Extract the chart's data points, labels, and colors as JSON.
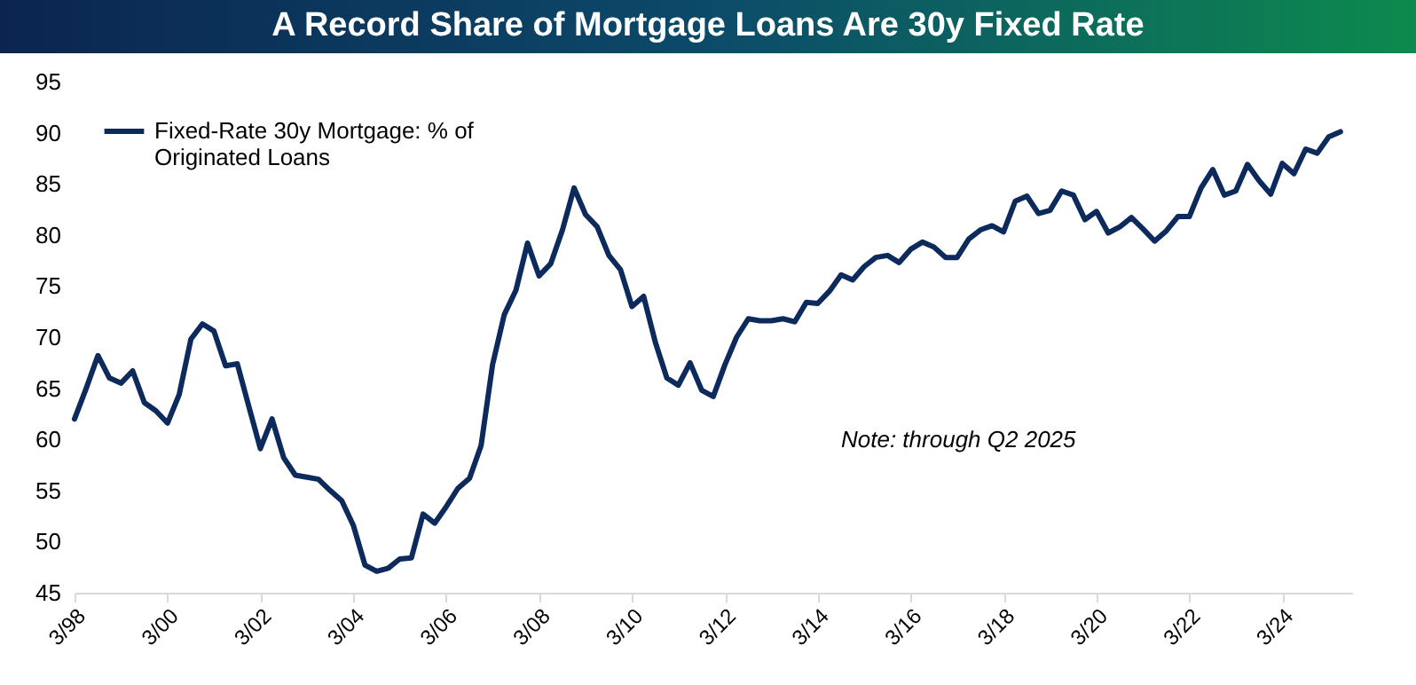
{
  "chart_data": {
    "type": "line",
    "title": "A Record Share of Mortgage Loans Are 30y Fixed Rate",
    "annotations": [
      "Note: through Q2 2025"
    ],
    "x": [
      "1998-03",
      "1998-06",
      "1998-09",
      "1998-12",
      "1999-03",
      "1999-06",
      "1999-09",
      "1999-12",
      "2000-03",
      "2000-06",
      "2000-09",
      "2000-12",
      "2001-03",
      "2001-06",
      "2001-09",
      "2001-12",
      "2002-03",
      "2002-06",
      "2002-09",
      "2002-12",
      "2003-03",
      "2003-06",
      "2003-09",
      "2003-12",
      "2004-03",
      "2004-06",
      "2004-09",
      "2004-12",
      "2005-03",
      "2005-06",
      "2005-09",
      "2005-12",
      "2006-03",
      "2006-06",
      "2006-09",
      "2006-12",
      "2007-03",
      "2007-06",
      "2007-09",
      "2007-12",
      "2008-03",
      "2008-06",
      "2008-09",
      "2008-12",
      "2009-03",
      "2009-06",
      "2009-09",
      "2009-12",
      "2010-03",
      "2010-06",
      "2010-09",
      "2010-12",
      "2011-03",
      "2011-06",
      "2011-09",
      "2011-12",
      "2012-03",
      "2012-06",
      "2012-09",
      "2012-12",
      "2013-03",
      "2013-06",
      "2013-09",
      "2013-12",
      "2014-03",
      "2014-06",
      "2014-09",
      "2014-12",
      "2015-03",
      "2015-06",
      "2015-09",
      "2015-12",
      "2016-03",
      "2016-06",
      "2016-09",
      "2016-12",
      "2017-03",
      "2017-06",
      "2017-09",
      "2017-12",
      "2018-03",
      "2018-06",
      "2018-09",
      "2018-12",
      "2019-03",
      "2019-06",
      "2019-09",
      "2019-12",
      "2020-03",
      "2020-06",
      "2020-09",
      "2020-12",
      "2021-03",
      "2021-06",
      "2021-09",
      "2021-12",
      "2022-03",
      "2022-06",
      "2022-09",
      "2022-12",
      "2023-03",
      "2023-06",
      "2023-09",
      "2023-12",
      "2024-03",
      "2024-06",
      "2024-09",
      "2024-12",
      "2025-03",
      "2025-06"
    ],
    "series": [
      {
        "name": "Fixed-Rate 30y Mortgage: % of Originated Loans",
        "color": "#0d2a5c",
        "values": [
          62,
          65,
          68.2,
          66,
          65.5,
          66.7,
          63.6,
          62.8,
          61.6,
          64.4,
          69.8,
          71.3,
          70.6,
          67.2,
          67.4,
          63.2,
          59.1,
          62,
          58.2,
          56.5,
          56.3,
          56.1,
          55,
          54,
          51.6,
          47.7,
          47.1,
          47.4,
          48.3,
          48.4,
          52.7,
          51.8,
          53.4,
          55.2,
          56.2,
          59.4,
          67.3,
          72.2,
          74.6,
          79.2,
          76,
          77.2,
          80.5,
          84.6,
          82,
          80.8,
          78,
          76.6,
          73,
          74,
          69.5,
          66,
          65.3,
          67.5,
          64.8,
          64.2,
          67.3,
          70,
          71.8,
          71.6,
          71.6,
          71.8,
          71.5,
          73.4,
          73.3,
          74.5,
          76.1,
          75.6,
          76.9,
          77.8,
          78,
          77.3,
          78.6,
          79.3,
          78.8,
          77.8,
          77.8,
          79.6,
          80.5,
          80.9,
          80.3,
          83.3,
          83.8,
          82.1,
          82.4,
          84.3,
          83.9,
          81.5,
          82.3,
          80.2,
          80.8,
          81.7,
          80.6,
          79.4,
          80.4,
          81.8,
          81.8,
          84.6,
          86.4,
          83.9,
          84.3,
          86.9,
          85.3,
          84,
          87,
          86,
          88.4,
          88,
          89.6,
          90.1
        ]
      }
    ],
    "xlim": [
      "1998-03",
      "2025-09"
    ],
    "xticks": [
      {
        "value": "1998-03",
        "label": "3/98"
      },
      {
        "value": "2000-03",
        "label": "3/00"
      },
      {
        "value": "2002-03",
        "label": "3/02"
      },
      {
        "value": "2004-03",
        "label": "3/04"
      },
      {
        "value": "2006-03",
        "label": "3/06"
      },
      {
        "value": "2008-03",
        "label": "3/08"
      },
      {
        "value": "2010-03",
        "label": "3/10"
      },
      {
        "value": "2012-03",
        "label": "3/12"
      },
      {
        "value": "2014-03",
        "label": "3/14"
      },
      {
        "value": "2016-03",
        "label": "3/16"
      },
      {
        "value": "2018-03",
        "label": "3/18"
      },
      {
        "value": "2020-03",
        "label": "3/20"
      },
      {
        "value": "2022-03",
        "label": "3/22"
      },
      {
        "value": "2024-03",
        "label": "3/24"
      }
    ],
    "ylim": [
      45,
      95
    ],
    "yticks": [
      45,
      50,
      55,
      60,
      65,
      70,
      75,
      80,
      85,
      90,
      95
    ],
    "grid": false,
    "legend": "top left",
    "line_style": "solid",
    "marker": "none"
  }
}
